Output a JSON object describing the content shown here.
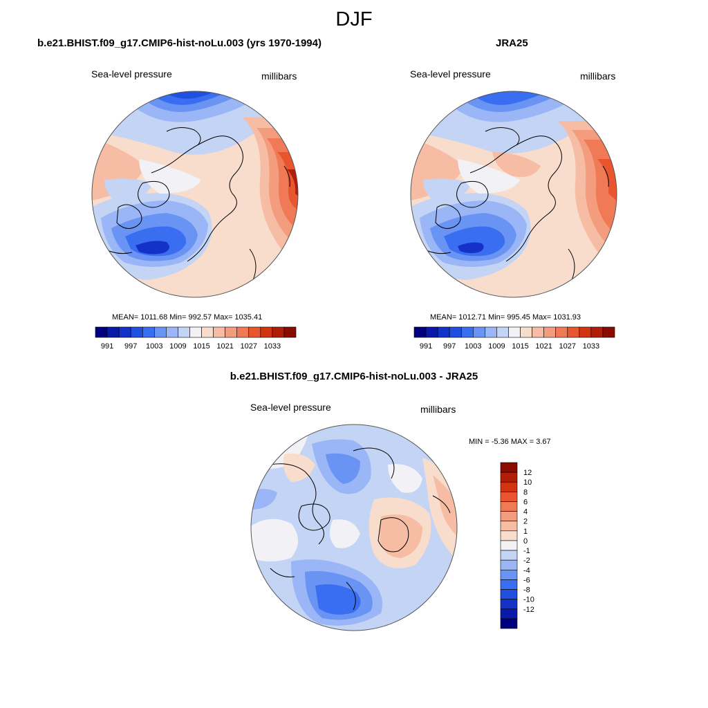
{
  "figure": {
    "title": "DJF"
  },
  "panels": {
    "model": {
      "title": "b.e21.BHIST.f09_g17.CMIP6-hist-noLu.003 (yrs 1970-1994)",
      "variable": "Sea-level pressure",
      "units": "millibars",
      "stats": "MEAN= 1011.68  Min= 992.57  Max= 1035.41"
    },
    "obs": {
      "title": "JRA25",
      "variable": "Sea-level pressure",
      "units": "millibars",
      "stats": "MEAN= 1012.71  Min= 995.45  Max= 1031.93"
    },
    "diff": {
      "title": "b.e21.BHIST.f09_g17.CMIP6-hist-noLu.003 - JRA25",
      "variable": "Sea-level pressure",
      "units": "millibars",
      "stats": "MIN =  -5.36 MAX =   3.67"
    }
  },
  "colorbars": {
    "slp": {
      "colors": [
        "#00007f",
        "#0a1aa8",
        "#1432c8",
        "#2050e0",
        "#3a6ef0",
        "#6a94f4",
        "#9ab6f6",
        "#c4d4f4",
        "#f2f2f6",
        "#f8dccc",
        "#f6bca4",
        "#f49c7e",
        "#f07a56",
        "#e8552e",
        "#d23412",
        "#b01e08",
        "#8a0c00"
      ],
      "labels": [
        "991",
        "997",
        "1003",
        "1009",
        "1015",
        "1021",
        "1027",
        "1033"
      ]
    },
    "diff": {
      "colors": [
        "#8a0c00",
        "#b01e08",
        "#d23412",
        "#e8552e",
        "#f07a56",
        "#f49c7e",
        "#f6bca4",
        "#f8dccc",
        "#f2f2f6",
        "#c4d4f4",
        "#9ab6f6",
        "#6a94f4",
        "#3a6ef0",
        "#2050e0",
        "#1432c8",
        "#0a1aa8",
        "#00007f"
      ],
      "labels": [
        "12",
        "10",
        "8",
        "6",
        "4",
        "2",
        "1",
        "0",
        "-1",
        "-2",
        "-4",
        "-6",
        "-8",
        "-10",
        "-12"
      ]
    }
  }
}
